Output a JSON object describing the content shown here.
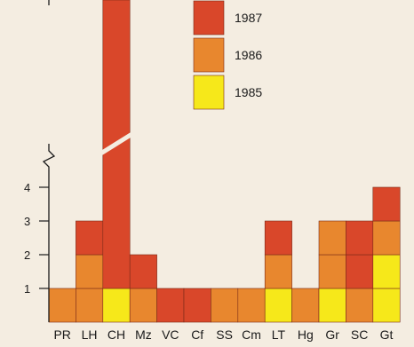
{
  "chart_data": {
    "type": "bar",
    "stacked": true,
    "axis_break": true,
    "categories": [
      "PR",
      "LH",
      "CH",
      "Mz",
      "VC",
      "Cf",
      "SS",
      "Cm",
      "LT",
      "Hg",
      "Gr",
      "SC",
      "Gt"
    ],
    "series": [
      {
        "name": "1985",
        "color": "#f6e81a",
        "values": [
          0,
          0,
          1,
          0,
          0,
          0,
          0,
          0,
          1,
          0,
          1,
          0,
          2
        ]
      },
      {
        "name": "1986",
        "color": "#e8872e",
        "values": [
          1,
          2,
          0,
          1,
          0,
          0,
          1,
          1,
          1,
          1,
          2,
          1,
          1
        ]
      },
      {
        "name": "1987",
        "color": "#d9472a",
        "values": [
          0,
          1,
          null,
          1,
          1,
          1,
          0,
          0,
          1,
          0,
          0,
          2,
          1
        ]
      }
    ],
    "yticks": [
      1,
      2,
      3,
      4
    ],
    "ylim": [
      0,
      5
    ],
    "legend_order": [
      "1987",
      "1986",
      "1985"
    ],
    "legend_position": "top-right"
  }
}
